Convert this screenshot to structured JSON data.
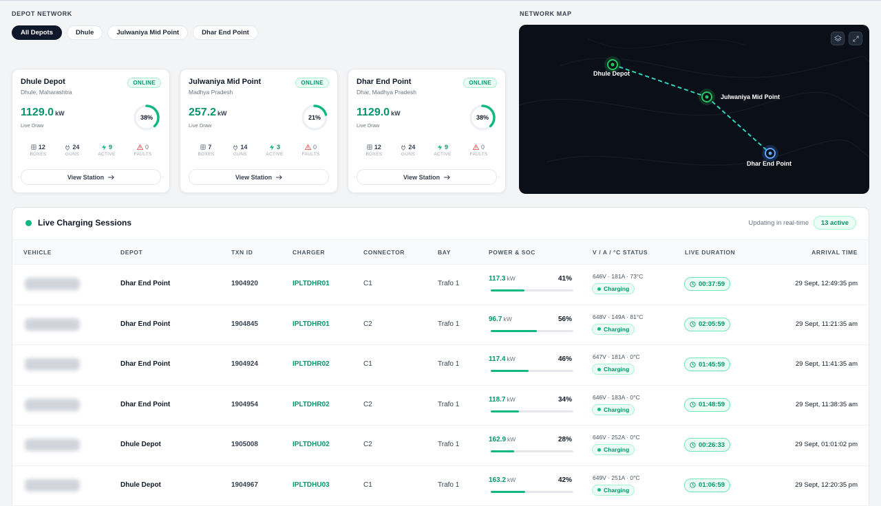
{
  "depot_network": {
    "label": "DEPOT NETWORK",
    "filters": [
      "All Depots",
      "Dhule",
      "Julwaniya Mid Point",
      "Dhar End Point"
    ],
    "active_filter": "All Depots"
  },
  "depots": [
    {
      "name": "Dhule Depot",
      "location": "Dhule, Maharashtra",
      "status": "ONLINE",
      "kw": "1129.0",
      "kw_unit": "kW",
      "live_label": "Live Draw",
      "percent_label": "38%",
      "percent": 38,
      "boxes": "12",
      "guns": "24",
      "active": "9",
      "faults": "0",
      "view_label": "View Station"
    },
    {
      "name": "Julwaniya Mid Point",
      "location": "Madhya Pradesh",
      "status": "ONLINE",
      "kw": "257.2",
      "kw_unit": "kW",
      "live_label": "Live Draw",
      "percent_label": "21%",
      "percent": 21,
      "boxes": "7",
      "guns": "14",
      "active": "3",
      "faults": "0",
      "view_label": "View Station"
    },
    {
      "name": "Dhar End Point",
      "location": "Dhar, Madhya Pradesh",
      "status": "ONLINE",
      "kw": "1129.0",
      "kw_unit": "kW",
      "live_label": "Live Draw",
      "percent_label": "38%",
      "percent": 38,
      "boxes": "12",
      "guns": "24",
      "active": "9",
      "faults": "0",
      "view_label": "View Station"
    }
  ],
  "stat_labels": {
    "boxes": "BOXES",
    "guns": "GUNS",
    "active": "ACTIVE",
    "faults": "FAULTS"
  },
  "network_map": {
    "label": "NETWORK MAP",
    "nodes": [
      "Dhule Depot",
      "Julwaniya Mid Point",
      "Dhar End Point"
    ],
    "controls": [
      "layers-icon",
      "expand-icon"
    ]
  },
  "sessions": {
    "title": "Live Charging Sessions",
    "updating": "Updating in real-time",
    "active_count": "13 active",
    "columns": [
      "VEHICLE",
      "DEPOT",
      "TXN ID",
      "CHARGER",
      "CONNECTOR",
      "BAY",
      "POWER & SOC",
      "V / A / °C STATUS",
      "LIVE DURATION",
      "ARRIVAL TIME"
    ],
    "rows": [
      {
        "depot": "Dhar End Point",
        "txn": "1904920",
        "charger": "IPLTDHR01",
        "connector": "C1",
        "bay": "Trafo 1",
        "power": "117.3",
        "power_unit": "kW",
        "soc": "41%",
        "soc_value": 41,
        "vat": "646V · 181A · 73°C",
        "status": "Charging",
        "duration": "00:37:59",
        "arrival": "29 Sept, 12:49:35 pm"
      },
      {
        "depot": "Dhar End Point",
        "txn": "1904845",
        "charger": "IPLTDHR01",
        "connector": "C2",
        "bay": "Trafo 1",
        "power": "96.7",
        "power_unit": "kW",
        "soc": "56%",
        "soc_value": 56,
        "vat": "648V · 149A · 81°C",
        "status": "Charging",
        "duration": "02:05:59",
        "arrival": "29 Sept, 11:21:35 am"
      },
      {
        "depot": "Dhar End Point",
        "txn": "1904924",
        "charger": "IPLTDHR02",
        "connector": "C1",
        "bay": "Trafo 1",
        "power": "117.4",
        "power_unit": "kW",
        "soc": "46%",
        "soc_value": 46,
        "vat": "647V · 181A · 0°C",
        "status": "Charging",
        "duration": "01:45:59",
        "arrival": "29 Sept, 11:41:35 am"
      },
      {
        "depot": "Dhar End Point",
        "txn": "1904954",
        "charger": "IPLTDHR02",
        "connector": "C2",
        "bay": "Trafo 1",
        "power": "118.7",
        "power_unit": "kW",
        "soc": "34%",
        "soc_value": 34,
        "vat": "646V · 183A · 0°C",
        "status": "Charging",
        "duration": "01:48:59",
        "arrival": "29 Sept, 11:38:35 am"
      },
      {
        "depot": "Dhule Depot",
        "txn": "1905008",
        "charger": "IPLTDHU02",
        "connector": "C2",
        "bay": "Trafo 1",
        "power": "162.9",
        "power_unit": "kW",
        "soc": "28%",
        "soc_value": 28,
        "vat": "646V · 252A · 0°C",
        "status": "Charging",
        "duration": "00:26:33",
        "arrival": "29 Sept, 01:01:02 pm"
      },
      {
        "depot": "Dhule Depot",
        "txn": "1904967",
        "charger": "IPLTDHU03",
        "connector": "C1",
        "bay": "Trafo 1",
        "power": "163.2",
        "power_unit": "kW",
        "soc": "42%",
        "soc_value": 42,
        "vat": "649V · 251A · 0°C",
        "status": "Charging",
        "duration": "01:06:59",
        "arrival": "29 Sept, 12:20:35 pm"
      }
    ]
  },
  "colors": {
    "accent": "#10b981",
    "accent_dark": "#059669",
    "map_bg": "#0b0f17",
    "route": "#2dd4bf"
  }
}
